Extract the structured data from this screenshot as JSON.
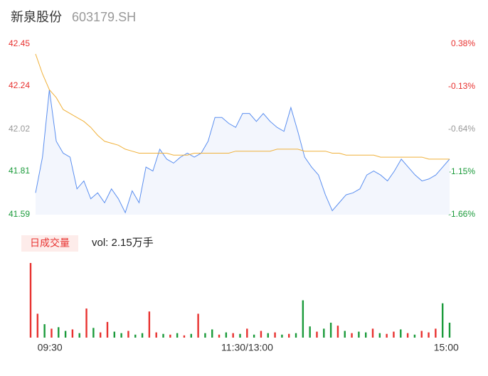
{
  "chart_data": [
    {
      "type": "line",
      "title": "新泉股份",
      "subtitle": "603179.SH",
      "x": [
        0,
        4,
        8,
        12,
        16,
        20,
        24,
        28,
        32,
        36,
        40,
        44,
        48,
        52,
        56,
        60,
        64,
        68,
        72,
        76,
        80,
        84,
        88,
        92,
        96,
        100,
        104,
        108,
        112,
        116,
        120,
        124,
        128,
        132,
        136,
        140,
        144,
        148,
        152,
        156,
        160,
        164,
        168,
        172,
        176,
        180,
        184,
        188,
        192,
        196,
        200,
        204,
        208,
        212,
        216,
        220,
        224,
        228,
        232,
        236,
        240
      ],
      "xlim": [
        0,
        240
      ],
      "ylim": [
        41.59,
        42.45
      ],
      "yticks": [
        42.45,
        42.24,
        42.02,
        41.81,
        41.59
      ],
      "y2lim": [
        -1.66,
        0.38
      ],
      "y2ticks": [
        {
          "value": 0.38,
          "label": "0.38%"
        },
        {
          "value": -0.13,
          "label": "-0.13%"
        },
        {
          "value": -0.64,
          "label": "-0.64%"
        },
        {
          "value": -1.15,
          "label": "-1.15%"
        },
        {
          "value": -1.66,
          "label": "-1.66%"
        }
      ],
      "tick_colors": [
        "#e8312f",
        "#e8312f",
        "#999999",
        "#1a9a3a",
        "#1a9a3a"
      ],
      "series": [
        {
          "name": "price",
          "color": "#5b8ff0",
          "values": [
            41.7,
            41.88,
            42.22,
            41.96,
            41.9,
            41.88,
            41.72,
            41.76,
            41.67,
            41.7,
            41.65,
            41.72,
            41.67,
            41.6,
            41.71,
            41.65,
            41.83,
            41.81,
            41.92,
            41.87,
            41.85,
            41.88,
            41.9,
            41.88,
            41.9,
            41.96,
            42.08,
            42.08,
            42.05,
            42.03,
            42.1,
            42.1,
            42.06,
            42.1,
            42.06,
            42.03,
            42.01,
            42.13,
            42.01,
            41.88,
            41.83,
            41.79,
            41.69,
            41.61,
            41.65,
            41.69,
            41.7,
            41.72,
            41.79,
            41.81,
            41.79,
            41.76,
            41.81,
            41.87,
            41.83,
            41.79,
            41.76,
            41.77,
            41.79,
            41.83,
            41.87
          ]
        },
        {
          "name": "average",
          "color": "#f0b13a",
          "values": [
            42.4,
            42.3,
            42.22,
            42.18,
            42.12,
            42.1,
            42.08,
            42.06,
            42.03,
            41.99,
            41.96,
            41.95,
            41.94,
            41.92,
            41.91,
            41.9,
            41.9,
            41.9,
            41.9,
            41.9,
            41.89,
            41.89,
            41.89,
            41.9,
            41.9,
            41.9,
            41.9,
            41.9,
            41.9,
            41.91,
            41.91,
            41.91,
            41.91,
            41.91,
            41.91,
            41.92,
            41.92,
            41.92,
            41.92,
            41.91,
            41.91,
            41.91,
            41.91,
            41.9,
            41.9,
            41.89,
            41.89,
            41.89,
            41.89,
            41.89,
            41.88,
            41.88,
            41.88,
            41.88,
            41.88,
            41.88,
            41.88,
            41.87,
            41.87,
            41.87,
            41.87
          ]
        }
      ]
    },
    {
      "type": "bar",
      "title": "日成交量",
      "annotation": "vol: 2.15万手",
      "x": [
        0,
        4,
        8,
        12,
        16,
        20,
        24,
        28,
        32,
        36,
        40,
        44,
        48,
        52,
        56,
        60,
        64,
        68,
        72,
        76,
        80,
        84,
        88,
        92,
        96,
        100,
        104,
        108,
        112,
        116,
        120,
        124,
        128,
        132,
        136,
        140,
        144,
        148,
        152,
        156,
        160,
        164,
        168,
        172,
        176,
        180,
        184,
        188,
        192,
        196,
        200,
        204,
        208,
        212,
        216,
        220,
        224,
        228,
        232,
        236,
        240
      ],
      "xlim": [
        0,
        240
      ],
      "ylim": [
        0,
        1000
      ],
      "xticks": [
        {
          "value": 7,
          "label": "09:30"
        },
        {
          "value": 120,
          "label": "11:30/13:00"
        },
        {
          "value": 234,
          "label": "15:00"
        }
      ],
      "values": [
        1000,
        320,
        180,
        120,
        140,
        90,
        110,
        60,
        390,
        130,
        70,
        210,
        80,
        60,
        90,
        40,
        60,
        350,
        70,
        50,
        40,
        60,
        30,
        50,
        320,
        60,
        110,
        40,
        70,
        60,
        50,
        120,
        40,
        90,
        60,
        70,
        40,
        50,
        60,
        500,
        150,
        80,
        120,
        200,
        160,
        90,
        60,
        80,
        70,
        120,
        60,
        50,
        80,
        110,
        60,
        40,
        90,
        70,
        120,
        460,
        200
      ],
      "bar_colors": [
        "#e8312f",
        "#e8312f",
        "#1a9a3a",
        "#e8312f",
        "#1a9a3a",
        "#1a9a3a",
        "#e8312f",
        "#1a9a3a",
        "#e8312f",
        "#1a9a3a",
        "#e8312f",
        "#e8312f",
        "#1a9a3a",
        "#1a9a3a",
        "#e8312f",
        "#1a9a3a",
        "#1a9a3a",
        "#e8312f",
        "#e8312f",
        "#1a9a3a",
        "#e8312f",
        "#1a9a3a",
        "#e8312f",
        "#1a9a3a",
        "#e8312f",
        "#1a9a3a",
        "#1a9a3a",
        "#e8312f",
        "#1a9a3a",
        "#e8312f",
        "#1a9a3a",
        "#e8312f",
        "#1a9a3a",
        "#e8312f",
        "#1a9a3a",
        "#e8312f",
        "#1a9a3a",
        "#e8312f",
        "#1a9a3a",
        "#1a9a3a",
        "#1a9a3a",
        "#e8312f",
        "#1a9a3a",
        "#1a9a3a",
        "#e8312f",
        "#1a9a3a",
        "#e8312f",
        "#1a9a3a",
        "#1a9a3a",
        "#e8312f",
        "#1a9a3a",
        "#e8312f",
        "#e8312f",
        "#1a9a3a",
        "#e8312f",
        "#1a9a3a",
        "#e8312f",
        "#e8312f",
        "#e8312f",
        "#1a9a3a",
        "#1a9a3a"
      ]
    }
  ]
}
